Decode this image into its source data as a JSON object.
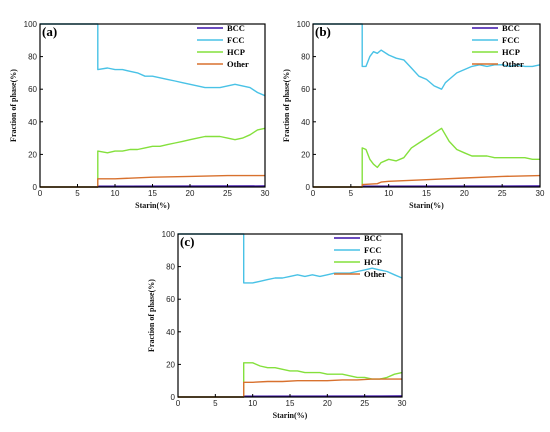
{
  "chart_data": [
    {
      "type": "line",
      "panel_label": "(a)",
      "xlabel": "Starin(%)",
      "ylabel": "Fraction of phase(%)",
      "xlim": [
        0,
        30
      ],
      "ylim": [
        0,
        100
      ],
      "xticks": [
        "0",
        "5",
        "10",
        "15",
        "20",
        "25",
        "30"
      ],
      "yticks": [
        "0",
        "20",
        "40",
        "60",
        "80",
        "100"
      ],
      "legend_position": "top-right",
      "series": [
        {
          "name": "BCC",
          "color": "#3a10a8",
          "x": [
            0,
            7.7,
            7.7,
            30
          ],
          "y": [
            0,
            0,
            0.5,
            0.6
          ]
        },
        {
          "name": "FCC",
          "color": "#49c2e6",
          "x": [
            0,
            7.7,
            7.7,
            9,
            10,
            11,
            12,
            13,
            14,
            15,
            16,
            17,
            18,
            19,
            20,
            21,
            22,
            23,
            24,
            25,
            26,
            27,
            28,
            29,
            30
          ],
          "y": [
            100,
            100,
            72,
            73,
            72,
            72,
            71,
            70,
            68,
            68,
            67,
            66,
            65,
            64,
            63,
            62,
            61,
            61,
            61,
            62,
            63,
            62,
            61,
            58,
            56
          ]
        },
        {
          "name": "HCP",
          "color": "#84e03c",
          "x": [
            0,
            7.7,
            7.7,
            9,
            10,
            11,
            12,
            13,
            14,
            15,
            16,
            17,
            18,
            19,
            20,
            21,
            22,
            23,
            24,
            25,
            26,
            27,
            28,
            29,
            30
          ],
          "y": [
            0,
            0,
            22,
            21,
            22,
            22,
            23,
            23,
            24,
            25,
            25,
            26,
            27,
            28,
            29,
            30,
            31,
            31,
            31,
            30,
            29,
            30,
            32,
            35,
            36
          ]
        },
        {
          "name": "Other",
          "color": "#d8712e",
          "x": [
            0,
            7.7,
            7.7,
            10,
            15,
            20,
            25,
            30
          ],
          "y": [
            0,
            0,
            5,
            5,
            6,
            6.5,
            7,
            7
          ]
        }
      ]
    },
    {
      "type": "line",
      "panel_label": "(b)",
      "xlabel": "Starin(%)",
      "ylabel": "Fraction of phase(%)",
      "xlim": [
        0,
        30
      ],
      "ylim": [
        0,
        100
      ],
      "xticks": [
        "0",
        "5",
        "10",
        "15",
        "20",
        "25",
        "30"
      ],
      "yticks": [
        "0",
        "20",
        "40",
        "60",
        "80",
        "100"
      ],
      "legend_position": "top-right",
      "series": [
        {
          "name": "BCC",
          "color": "#3a10a8",
          "x": [
            0,
            6.5,
            6.5,
            30
          ],
          "y": [
            0,
            0,
            0.5,
            0.6
          ]
        },
        {
          "name": "FCC",
          "color": "#49c2e6",
          "x": [
            0,
            6.5,
            6.5,
            7,
            7.5,
            8,
            8.5,
            9,
            10,
            11,
            12,
            13,
            14,
            15,
            16,
            17,
            17.5,
            18,
            19,
            20,
            21,
            22,
            23,
            24,
            25,
            26,
            27,
            28,
            29,
            30
          ],
          "y": [
            100,
            100,
            74,
            74,
            80,
            83,
            82,
            84,
            81,
            79,
            78,
            73,
            68,
            66,
            62,
            60,
            64,
            66,
            70,
            72,
            74,
            75,
            74,
            75,
            75,
            74,
            75,
            74,
            74,
            75
          ]
        },
        {
          "name": "HCP",
          "color": "#84e03c",
          "x": [
            0,
            6.5,
            6.5,
            7,
            7.5,
            8,
            8.5,
            9,
            10,
            11,
            12,
            13,
            14,
            15,
            16,
            17,
            17.5,
            18,
            19,
            20,
            21,
            22,
            23,
            24,
            25,
            26,
            27,
            28,
            29,
            30
          ],
          "y": [
            0,
            0,
            24,
            23,
            17,
            14,
            12,
            15,
            17,
            16,
            18,
            24,
            27,
            30,
            33,
            36,
            32,
            28,
            23,
            21,
            19,
            19,
            19,
            18,
            18,
            18,
            18,
            18,
            17,
            17
          ]
        },
        {
          "name": "Other",
          "color": "#d8712e",
          "x": [
            0,
            6.5,
            6.5,
            8.5,
            9,
            10,
            15,
            20,
            25,
            30
          ],
          "y": [
            0,
            0,
            1.5,
            2,
            3,
            3.5,
            4.5,
            5.5,
            6.5,
            7
          ]
        }
      ]
    },
    {
      "type": "line",
      "panel_label": "(c)",
      "xlabel": "Starin(%)",
      "ylabel": "Fraction of phase(%)",
      "xlim": [
        0,
        30
      ],
      "ylim": [
        0,
        100
      ],
      "xticks": [
        "0",
        "5",
        "10",
        "15",
        "20",
        "25",
        "30"
      ],
      "yticks": [
        "0",
        "20",
        "40",
        "60",
        "80",
        "100"
      ],
      "legend_position": "top-right",
      "series": [
        {
          "name": "BCC",
          "color": "#3a10a8",
          "x": [
            0,
            8.8,
            8.8,
            30
          ],
          "y": [
            0,
            0,
            0.5,
            0.6
          ]
        },
        {
          "name": "FCC",
          "color": "#49c2e6",
          "x": [
            0,
            8.8,
            8.8,
            10,
            11,
            12,
            13,
            14,
            15,
            16,
            17,
            18,
            19,
            20,
            21,
            22,
            23,
            24,
            25,
            26,
            27,
            28,
            29,
            30
          ],
          "y": [
            100,
            100,
            70,
            70,
            71,
            72,
            73,
            73,
            74,
            75,
            74,
            75,
            74,
            75,
            76,
            76,
            76,
            77,
            78,
            79,
            78,
            77,
            75,
            73
          ]
        },
        {
          "name": "HCP",
          "color": "#84e03c",
          "x": [
            0,
            8.8,
            8.8,
            10,
            11,
            12,
            13,
            14,
            15,
            16,
            17,
            18,
            19,
            20,
            21,
            22,
            23,
            24,
            25,
            26,
            27,
            28,
            29,
            30
          ],
          "y": [
            0,
            0,
            21,
            21,
            19,
            18,
            18,
            17,
            16,
            16,
            15,
            15,
            15,
            14,
            14,
            14,
            13,
            12,
            12,
            11,
            11,
            12,
            14,
            15
          ]
        },
        {
          "name": "Other",
          "color": "#d8712e",
          "x": [
            0,
            8.8,
            8.8,
            10,
            12,
            14,
            16,
            18,
            20,
            22,
            24,
            26,
            28,
            30
          ],
          "y": [
            0,
            0,
            9,
            9,
            9.5,
            9.5,
            10,
            10,
            10,
            10.5,
            10.5,
            11,
            11,
            11
          ]
        }
      ]
    }
  ]
}
